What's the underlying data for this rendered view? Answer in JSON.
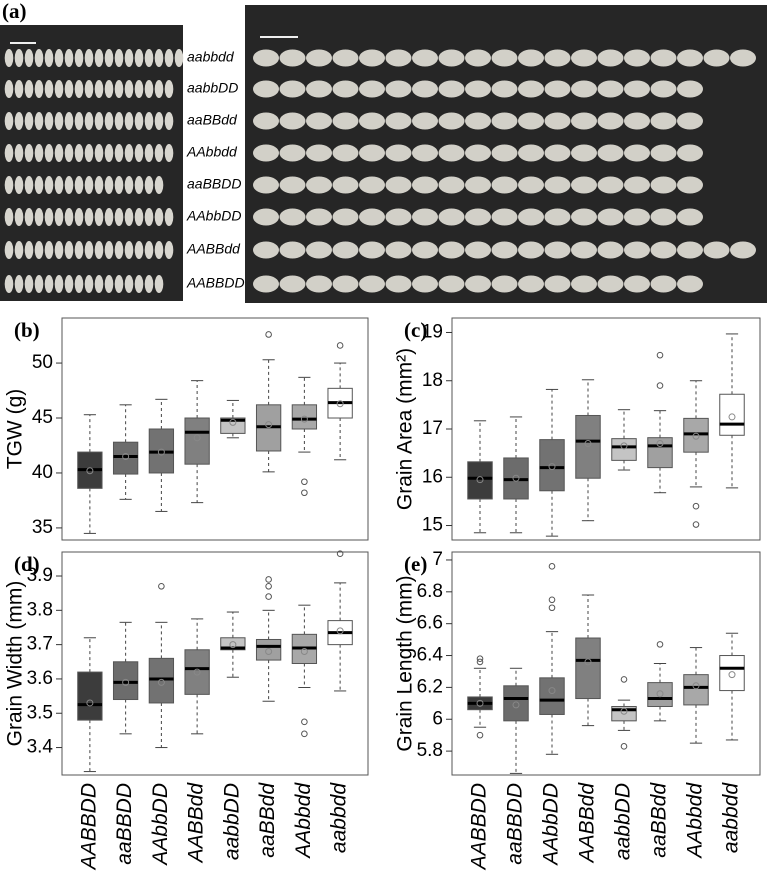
{
  "panel_a": {
    "label": "(a)",
    "genotypes": [
      "aabbdd",
      "aabbDD",
      "aaBBdd",
      "AAbbdd",
      "aaBBDD",
      "AAbbDD",
      "AABBdd",
      "AABBDD"
    ]
  },
  "chart_data": [
    {
      "type": "box",
      "label": "(b)",
      "y_label": "TGW (g)",
      "ylim": [
        33.9,
        54.1
      ],
      "yticks": [
        35,
        40,
        45,
        50
      ],
      "colors": [
        "#3c3c3c",
        "#6c6c6c",
        "#727272",
        "#808080",
        "#c4c4c4",
        "#a0a0a0",
        "#a8a8a8",
        "#ffffff"
      ],
      "boxes": [
        {
          "min": 34.5,
          "q1": 38.6,
          "median": 40.3,
          "q3": 41.9,
          "max": 45.3,
          "mean": 40.2,
          "outliers": []
        },
        {
          "min": 37.6,
          "q1": 39.9,
          "median": 41.5,
          "q3": 42.8,
          "max": 46.2,
          "mean": 41.5,
          "outliers": []
        },
        {
          "min": 36.5,
          "q1": 40.0,
          "median": 41.9,
          "q3": 44.0,
          "max": 46.7,
          "mean": 41.9,
          "outliers": []
        },
        {
          "min": 37.3,
          "q1": 40.8,
          "median": 43.7,
          "q3": 45.0,
          "max": 48.4,
          "mean": 43.2,
          "outliers": []
        },
        {
          "min": 43.2,
          "q1": 43.6,
          "median": 44.8,
          "q3": 45.0,
          "max": 46.6,
          "mean": 44.6,
          "outliers": []
        },
        {
          "min": 40.1,
          "q1": 42.0,
          "median": 44.2,
          "q3": 46.2,
          "max": 50.3,
          "mean": 44.4,
          "outliers": [
            52.6
          ]
        },
        {
          "min": 41.9,
          "q1": 44.0,
          "median": 44.9,
          "q3": 46.2,
          "max": 48.7,
          "mean": 44.9,
          "outliers": [
            39.2,
            38.2
          ]
        },
        {
          "min": 41.2,
          "q1": 45.0,
          "median": 46.4,
          "q3": 47.7,
          "max": 50.0,
          "mean": 46.3,
          "outliers": [
            51.6
          ]
        }
      ]
    },
    {
      "type": "box",
      "label": "(c)",
      "y_label": "Grain Area (mm²)",
      "ylim": [
        14.7,
        19.3
      ],
      "yticks": [
        15,
        16,
        17,
        18,
        19
      ],
      "colors": [
        "#3c3c3c",
        "#6c6c6c",
        "#727272",
        "#808080",
        "#c4c4c4",
        "#a0a0a0",
        "#a8a8a8",
        "#ffffff"
      ],
      "boxes": [
        {
          "min": 14.85,
          "q1": 15.55,
          "median": 15.98,
          "q3": 16.32,
          "max": 17.17,
          "mean": 15.95,
          "outliers": []
        },
        {
          "min": 14.85,
          "q1": 15.55,
          "median": 15.95,
          "q3": 16.4,
          "max": 17.25,
          "mean": 15.98,
          "outliers": []
        },
        {
          "min": 14.78,
          "q1": 15.72,
          "median": 16.2,
          "q3": 16.78,
          "max": 17.82,
          "mean": 16.22,
          "outliers": []
        },
        {
          "min": 15.1,
          "q1": 15.98,
          "median": 16.75,
          "q3": 17.28,
          "max": 18.02,
          "mean": 16.7,
          "outliers": []
        },
        {
          "min": 16.15,
          "q1": 16.35,
          "median": 16.63,
          "q3": 16.8,
          "max": 17.4,
          "mean": 16.65,
          "outliers": []
        },
        {
          "min": 15.68,
          "q1": 16.2,
          "median": 16.65,
          "q3": 16.82,
          "max": 17.38,
          "mean": 16.7,
          "outliers": [
            17.9,
            18.53
          ]
        },
        {
          "min": 15.8,
          "q1": 16.52,
          "median": 16.9,
          "q3": 17.22,
          "max": 18.0,
          "mean": 16.85,
          "outliers": [
            15.4,
            15.02
          ]
        },
        {
          "min": 15.78,
          "q1": 16.87,
          "median": 17.1,
          "q3": 17.72,
          "max": 18.97,
          "mean": 17.25,
          "outliers": []
        }
      ]
    },
    {
      "type": "box",
      "label": "(d)",
      "y_label": "Grain Width (mm)",
      "ylim": [
        3.32,
        3.97
      ],
      "yticks": [
        3.4,
        3.5,
        3.6,
        3.7,
        3.8,
        3.9
      ],
      "categories": [
        "AABBDD",
        "aaBBDD",
        "AAbbDD",
        "AABBdd",
        "aabbDD",
        "aaBBdd",
        "AAbbdd",
        "aabbdd"
      ],
      "colors": [
        "#3c3c3c",
        "#6c6c6c",
        "#727272",
        "#808080",
        "#c4c4c4",
        "#a0a0a0",
        "#a8a8a8",
        "#ffffff"
      ],
      "boxes": [
        {
          "min": 3.33,
          "q1": 3.48,
          "median": 3.525,
          "q3": 3.62,
          "max": 3.72,
          "mean": 3.53,
          "outliers": []
        },
        {
          "min": 3.44,
          "q1": 3.54,
          "median": 3.59,
          "q3": 3.65,
          "max": 3.765,
          "mean": 3.59,
          "outliers": []
        },
        {
          "min": 3.4,
          "q1": 3.53,
          "median": 3.6,
          "q3": 3.66,
          "max": 3.765,
          "mean": 3.59,
          "outliers": [
            3.87
          ]
        },
        {
          "min": 3.44,
          "q1": 3.555,
          "median": 3.63,
          "q3": 3.685,
          "max": 3.775,
          "mean": 3.62,
          "outliers": []
        },
        {
          "min": 3.605,
          "q1": 3.685,
          "median": 3.69,
          "q3": 3.72,
          "max": 3.795,
          "mean": 3.7,
          "outliers": []
        },
        {
          "min": 3.535,
          "q1": 3.655,
          "median": 3.695,
          "q3": 3.715,
          "max": 3.8,
          "mean": 3.68,
          "outliers": [
            3.89,
            3.87,
            3.84
          ]
        },
        {
          "min": 3.575,
          "q1": 3.645,
          "median": 3.69,
          "q3": 3.73,
          "max": 3.815,
          "mean": 3.68,
          "outliers": [
            3.475,
            3.44
          ]
        },
        {
          "min": 3.565,
          "q1": 3.7,
          "median": 3.735,
          "q3": 3.77,
          "max": 3.88,
          "mean": 3.74,
          "outliers": [
            3.965
          ]
        }
      ]
    },
    {
      "type": "box",
      "label": "(e)",
      "y_label": "Grain Length (mm)",
      "ylim": [
        5.65,
        7.05
      ],
      "yticks": [
        5.8,
        6.0,
        6.2,
        6.4,
        6.6,
        6.8,
        7.0
      ],
      "categories": [
        "AABBDD",
        "aaBBDD",
        "AAbbDD",
        "AABBdd",
        "aabbDD",
        "aaBBdd",
        "AAbbdd",
        "aabbdd"
      ],
      "colors": [
        "#3c3c3c",
        "#6c6c6c",
        "#727272",
        "#808080",
        "#c4c4c4",
        "#a0a0a0",
        "#a8a8a8",
        "#ffffff"
      ],
      "boxes": [
        {
          "min": 5.95,
          "q1": 6.06,
          "median": 6.1,
          "q3": 6.14,
          "max": 6.32,
          "mean": 6.1,
          "outliers": [
            6.36,
            6.38,
            5.9
          ]
        },
        {
          "min": 5.66,
          "q1": 5.99,
          "median": 6.13,
          "q3": 6.21,
          "max": 6.32,
          "mean": 6.09,
          "outliers": []
        },
        {
          "min": 5.78,
          "q1": 6.03,
          "median": 6.12,
          "q3": 6.26,
          "max": 6.55,
          "mean": 6.18,
          "outliers": [
            6.7,
            6.75,
            6.96
          ]
        },
        {
          "min": 5.96,
          "q1": 6.13,
          "median": 6.37,
          "q3": 6.51,
          "max": 6.78,
          "mean": 6.36,
          "outliers": []
        },
        {
          "min": 5.93,
          "q1": 5.99,
          "median": 6.06,
          "q3": 6.08,
          "max": 6.12,
          "mean": 6.05,
          "outliers": [
            6.25,
            5.83
          ]
        },
        {
          "min": 5.99,
          "q1": 6.08,
          "median": 6.13,
          "q3": 6.23,
          "max": 6.35,
          "mean": 6.16,
          "outliers": [
            6.47
          ]
        },
        {
          "min": 5.85,
          "q1": 6.09,
          "median": 6.2,
          "q3": 6.28,
          "max": 6.45,
          "mean": 6.21,
          "outliers": []
        },
        {
          "min": 5.87,
          "q1": 6.18,
          "median": 6.32,
          "q3": 6.4,
          "max": 6.54,
          "mean": 6.28,
          "outliers": []
        }
      ]
    }
  ]
}
